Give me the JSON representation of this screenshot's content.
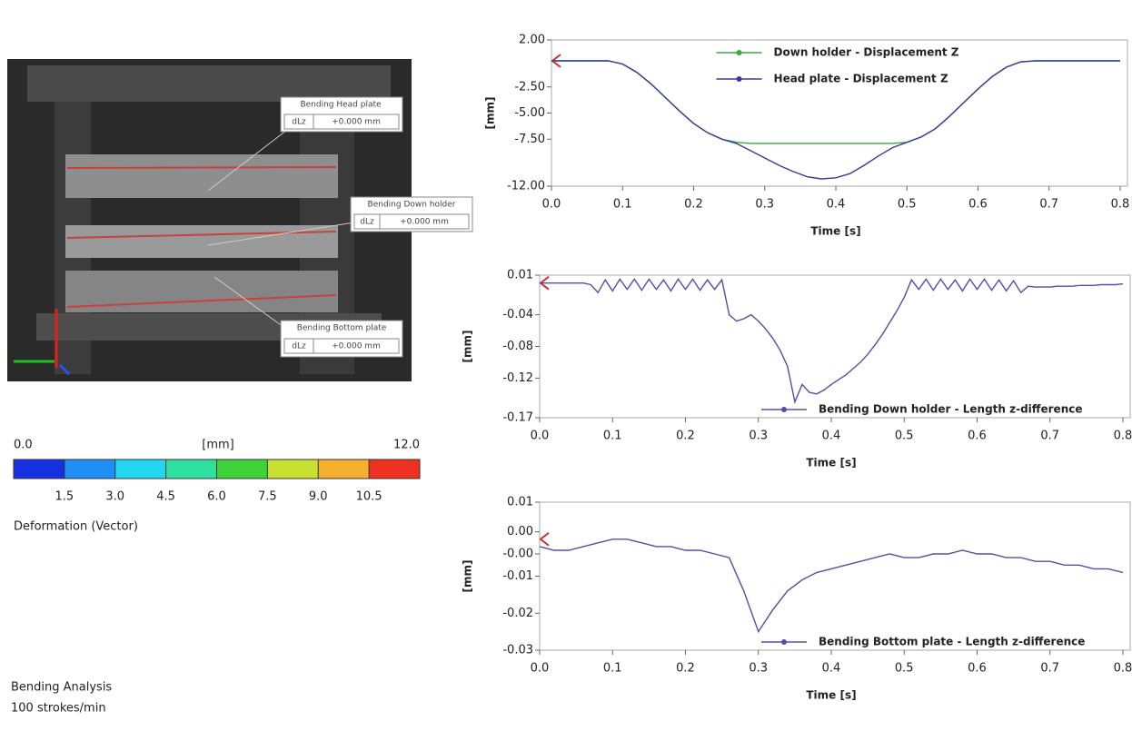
{
  "image_panel": {
    "annotations": [
      {
        "title": "Bending Head plate",
        "quantity": "dLz",
        "value": "+0.000 mm"
      },
      {
        "title": "Bending Down holder",
        "quantity": "dLz",
        "value": "+0.000 mm"
      },
      {
        "title": "Bending Bottom plate",
        "quantity": "dLz",
        "value": "+0.000 mm"
      }
    ]
  },
  "colorbar": {
    "unit": "[mm]",
    "min": {
      "value": 0,
      "label": "0.0"
    },
    "max": {
      "value": 12,
      "label": "12.0"
    },
    "ticks": [
      1.5,
      {
        "value": 3,
        "label": "3.0"
      },
      4.5,
      {
        "value": 6,
        "label": "6.0"
      },
      7.5,
      {
        "value": 9,
        "label": "9.0"
      },
      10.5
    ],
    "colors": [
      "#1530e0",
      "#1f8ff5",
      "#22d6f0",
      "#2ee0a0",
      "#3ed23a",
      "#c8e030",
      "#f5b030",
      "#f03020"
    ],
    "caption": "Deformation (Vector)"
  },
  "footer": {
    "title": "Bending Analysis",
    "rate": "100 strokes/min"
  },
  "chart_data": [
    {
      "type": "line",
      "xlabel": "Time [s]",
      "ylabel": "[mm]",
      "legend": "top-center",
      "xlim": [
        0,
        0.8
      ],
      "xticks": [
        {
          "value": 0,
          "label": "0.0"
        },
        0.1,
        0.2,
        0.3,
        0.4,
        0.5,
        0.6,
        0.7,
        0.8
      ],
      "ylim": [
        -12,
        2
      ],
      "yticks": [
        {
          "value": 2,
          "label": "2.00"
        },
        {
          "value": -2.5,
          "label": "-2.50"
        },
        {
          "value": -5,
          "label": "-5.00"
        },
        {
          "value": -7.5,
          "label": "-7.50"
        },
        {
          "value": -12,
          "label": "-12.00"
        }
      ],
      "x": [
        0,
        0.02,
        0.04,
        0.06,
        0.08,
        0.1,
        0.12,
        0.14,
        0.16,
        0.18,
        0.2,
        0.22,
        0.24,
        0.26,
        0.28,
        0.3,
        0.32,
        0.34,
        0.36,
        0.38,
        0.4,
        0.42,
        0.44,
        0.46,
        0.48,
        0.5,
        0.52,
        0.54,
        0.56,
        0.58,
        0.6,
        0.62,
        0.64,
        0.66,
        0.68,
        0.7,
        0.72,
        0.74,
        0.76,
        0.78,
        0.8
      ],
      "series": [
        {
          "name": "Down holder - Displacement Z",
          "color": "#3aa83a",
          "values": [
            0,
            0,
            0,
            0,
            0,
            -0.3,
            -1.1,
            -2.2,
            -3.5,
            -4.8,
            -6.0,
            -6.9,
            -7.5,
            -7.8,
            -7.9,
            -7.9,
            -7.9,
            -7.9,
            -7.9,
            -7.9,
            -7.9,
            -7.9,
            -7.9,
            -7.9,
            -7.9,
            -7.8,
            -7.3,
            -6.5,
            -5.3,
            -4.0,
            -2.7,
            -1.5,
            -0.6,
            -0.1,
            0,
            0,
            0,
            0,
            0,
            0,
            0
          ]
        },
        {
          "name": "Head plate - Displacement Z",
          "color": "#3a3a9a",
          "values": [
            0,
            0,
            0,
            0,
            0,
            -0.3,
            -1.1,
            -2.2,
            -3.5,
            -4.8,
            -6.0,
            -6.9,
            -7.5,
            -7.9,
            -8.6,
            -9.3,
            -10.0,
            -10.6,
            -11.1,
            -11.3,
            -11.2,
            -10.8,
            -10.0,
            -9.1,
            -8.3,
            -7.8,
            -7.3,
            -6.5,
            -5.3,
            -4.0,
            -2.7,
            -1.5,
            -0.6,
            -0.1,
            0,
            0,
            0,
            0,
            0,
            0,
            0
          ]
        }
      ]
    },
    {
      "type": "line",
      "xlabel": "Time [s]",
      "ylabel": "[mm]",
      "legend": "bottom-right",
      "xlim": [
        0,
        0.8
      ],
      "xticks": [
        {
          "value": 0,
          "label": "0.0"
        },
        0.1,
        0.2,
        0.3,
        0.4,
        0.5,
        0.6,
        0.7,
        0.8
      ],
      "ylim": [
        -0.17,
        0.01
      ],
      "yticks": [
        0.01,
        -0.04,
        -0.08,
        -0.12,
        -0.17
      ],
      "x": [
        0,
        0.01,
        0.02,
        0.03,
        0.04,
        0.05,
        0.06,
        0.07,
        0.08,
        0.09,
        0.1,
        0.11,
        0.12,
        0.13,
        0.14,
        0.15,
        0.16,
        0.17,
        0.18,
        0.19,
        0.2,
        0.21,
        0.22,
        0.23,
        0.24,
        0.25,
        0.26,
        0.27,
        0.28,
        0.29,
        0.3,
        0.31,
        0.32,
        0.33,
        0.34,
        0.35,
        0.36,
        0.37,
        0.38,
        0.39,
        0.4,
        0.41,
        0.42,
        0.43,
        0.44,
        0.45,
        0.46,
        0.47,
        0.48,
        0.49,
        0.5,
        0.51,
        0.52,
        0.53,
        0.54,
        0.55,
        0.56,
        0.57,
        0.58,
        0.59,
        0.6,
        0.61,
        0.62,
        0.63,
        0.64,
        0.65,
        0.66,
        0.67,
        0.68,
        0.69,
        0.7,
        0.71,
        0.72,
        0.73,
        0.74,
        0.75,
        0.76,
        0.77,
        0.78,
        0.79,
        0.8
      ],
      "series": [
        {
          "name": "Bending Down holder - Length z-difference",
          "color": "#5050a8",
          "values": [
            0.0,
            0.0,
            0.0,
            0.0,
            0.0,
            0.0,
            0.0,
            -0.002,
            -0.012,
            0.004,
            -0.01,
            0.005,
            -0.008,
            0.005,
            -0.009,
            0.005,
            -0.008,
            0.004,
            -0.01,
            0.005,
            -0.008,
            0.005,
            -0.009,
            0.004,
            -0.008,
            0.004,
            -0.04,
            -0.048,
            -0.045,
            -0.04,
            -0.048,
            -0.058,
            -0.07,
            -0.085,
            -0.105,
            -0.15,
            -0.128,
            -0.138,
            -0.14,
            -0.135,
            -0.128,
            -0.122,
            -0.116,
            -0.108,
            -0.1,
            -0.09,
            -0.078,
            -0.065,
            -0.05,
            -0.035,
            -0.018,
            0.004,
            -0.008,
            0.005,
            -0.009,
            0.005,
            -0.008,
            0.004,
            -0.01,
            0.005,
            -0.008,
            0.005,
            -0.009,
            0.004,
            -0.01,
            0.003,
            -0.012,
            -0.004,
            -0.005,
            -0.005,
            -0.005,
            -0.004,
            -0.004,
            -0.004,
            -0.003,
            -0.003,
            -0.003,
            -0.002,
            -0.002,
            -0.002,
            -0.001
          ]
        }
      ]
    },
    {
      "type": "line",
      "xlabel": "Time [s]",
      "ylabel": "[mm]",
      "legend": "bottom-right",
      "xlim": [
        0,
        0.8
      ],
      "xticks": [
        {
          "value": 0,
          "label": "0.0"
        },
        0.1,
        0.2,
        0.3,
        0.4,
        0.5,
        0.6,
        0.7,
        0.8
      ],
      "ylim": [
        -0.03,
        0.01
      ],
      "yticks": [
        0.01,
        {
          "value": 0.002,
          "label": "0.00"
        },
        {
          "value": -0.004,
          "label": "-0.00"
        },
        -0.01,
        -0.02,
        -0.03
      ],
      "x": [
        0,
        0.02,
        0.04,
        0.06,
        0.08,
        0.1,
        0.12,
        0.14,
        0.16,
        0.18,
        0.2,
        0.22,
        0.24,
        0.26,
        0.28,
        0.3,
        0.32,
        0.34,
        0.36,
        0.38,
        0.4,
        0.42,
        0.44,
        0.46,
        0.48,
        0.5,
        0.52,
        0.54,
        0.56,
        0.58,
        0.6,
        0.62,
        0.64,
        0.66,
        0.68,
        0.7,
        0.72,
        0.74,
        0.76,
        0.78,
        0.8
      ],
      "series": [
        {
          "name": "Bending Bottom plate - Length z-difference",
          "color": "#5050a8",
          "values": [
            -0.002,
            -0.003,
            -0.003,
            -0.002,
            -0.001,
            0.0,
            0.0,
            -0.001,
            -0.002,
            -0.002,
            -0.003,
            -0.003,
            -0.004,
            -0.005,
            -0.014,
            -0.025,
            -0.019,
            -0.014,
            -0.011,
            -0.009,
            -0.008,
            -0.007,
            -0.006,
            -0.005,
            -0.004,
            -0.005,
            -0.005,
            -0.004,
            -0.004,
            -0.003,
            -0.004,
            -0.004,
            -0.005,
            -0.005,
            -0.006,
            -0.006,
            -0.007,
            -0.007,
            -0.008,
            -0.008,
            -0.009
          ]
        }
      ]
    }
  ]
}
